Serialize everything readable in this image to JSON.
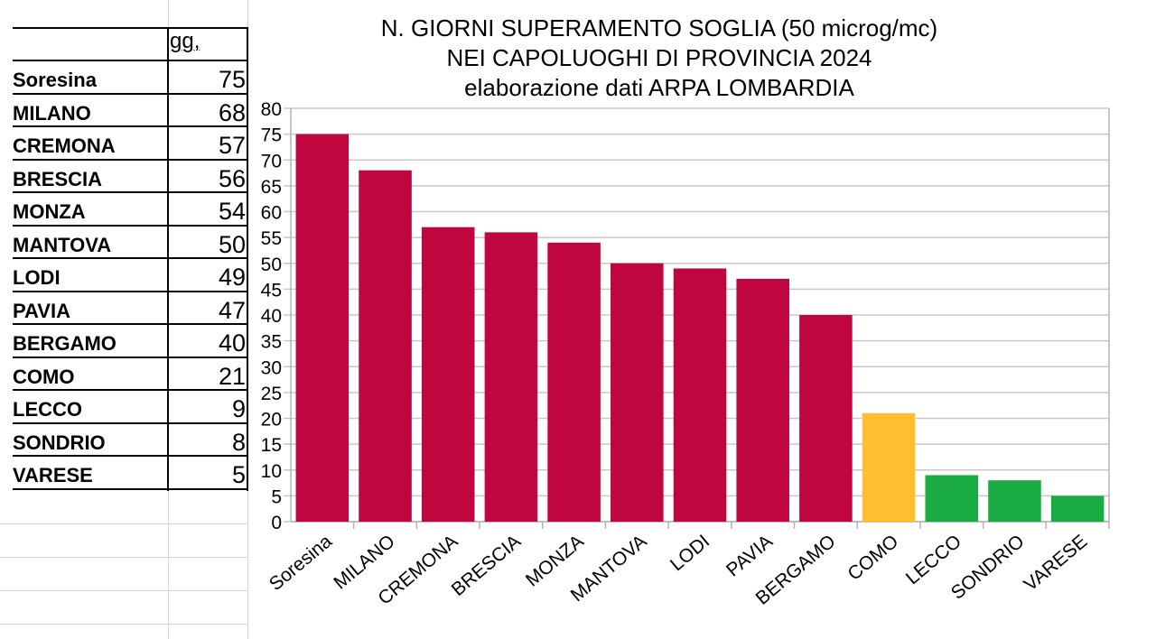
{
  "table": {
    "header": "gg,",
    "rows": [
      {
        "name": "Soresina",
        "value": "75"
      },
      {
        "name": "MILANO",
        "value": "68"
      },
      {
        "name": "CREMONA",
        "value": "57"
      },
      {
        "name": "BRESCIA",
        "value": "56"
      },
      {
        "name": "MONZA",
        "value": "54"
      },
      {
        "name": "MANTOVA",
        "value": "50"
      },
      {
        "name": "LODI",
        "value": "49"
      },
      {
        "name": "PAVIA",
        "value": "47"
      },
      {
        "name": "BERGAMO",
        "value": "40"
      },
      {
        "name": "COMO",
        "value": "21"
      },
      {
        "name": "LECCO",
        "value": "9"
      },
      {
        "name": "SONDRIO",
        "value": "8"
      },
      {
        "name": "VARESE",
        "value": "5"
      }
    ]
  },
  "chart_data": {
    "type": "bar",
    "title": [
      "N. GIORNI SUPERAMENTO SOGLIA (50 microg/mc)",
      "NEI CAPOLUOGHI DI PROVINCIA 2024",
      "elaborazione dati ARPA LOMBARDIA"
    ],
    "categories": [
      "Soresina",
      "MILANO",
      "CREMONA",
      "BRESCIA",
      "MONZA",
      "MANTOVA",
      "LODI",
      "PAVIA",
      "BERGAMO",
      "COMO",
      "LECCO",
      "SONDRIO",
      "VARESE"
    ],
    "values": [
      75,
      68,
      57,
      56,
      54,
      50,
      49,
      47,
      40,
      21,
      9,
      8,
      5
    ],
    "colors": [
      "#bf063f",
      "#bf063f",
      "#bf063f",
      "#bf063f",
      "#bf063f",
      "#bf063f",
      "#bf063f",
      "#bf063f",
      "#bf063f",
      "#ffbf2f",
      "#1aab42",
      "#1aab42",
      "#1aab42"
    ],
    "xlabel": "",
    "ylabel": "",
    "ylim": [
      0,
      80
    ],
    "ytick_step": 5,
    "grid": true,
    "legend": "none"
  }
}
